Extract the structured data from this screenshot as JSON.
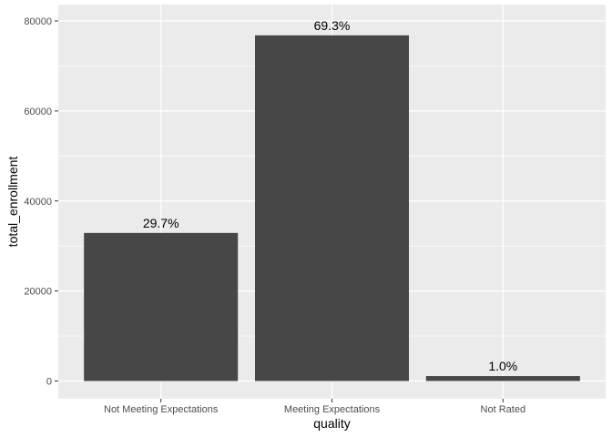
{
  "chart_data": {
    "type": "bar",
    "categories": [
      "Not Meeting Expectations",
      "Meeting Expectations",
      "Not Rated"
    ],
    "values": [
      32900,
      76800,
      1100
    ],
    "data_labels": [
      "29.7%",
      "69.3%",
      "1.0%"
    ],
    "title": "",
    "xlabel": "quality",
    "ylabel": "total_enrollment",
    "ylim": [
      0,
      84000
    ],
    "y_ticks": [
      0,
      20000,
      40000,
      60000,
      80000
    ],
    "y_tick_labels": [
      "0",
      "20000",
      "40000",
      "60000",
      "80000"
    ],
    "grid": true,
    "legend": "none",
    "colors": {
      "panel_background": "#ebebeb",
      "grid_major": "#ffffff",
      "bar_fill": "#474747"
    }
  }
}
